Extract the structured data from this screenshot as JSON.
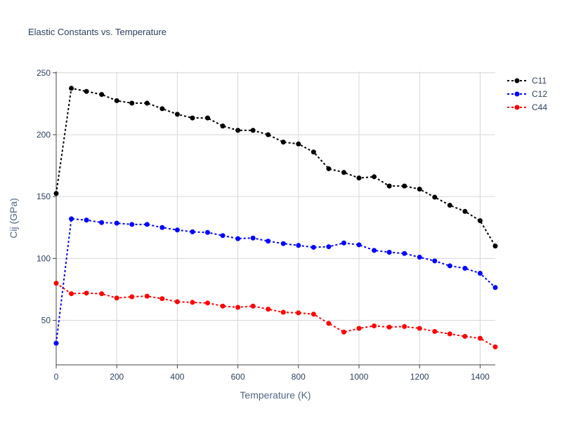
{
  "chart_data": {
    "type": "line",
    "title": "Elastic Constants vs. Temperature",
    "xlabel": "Temperature (K)",
    "ylabel": "Cij (GPa)",
    "xlim": [
      0,
      1450
    ],
    "ylim": [
      14,
      251
    ],
    "grid": true,
    "legend_position": "top-right",
    "x_ticks": [
      0,
      200,
      400,
      600,
      800,
      1000,
      1200,
      1400
    ],
    "y_ticks": [
      50,
      100,
      150,
      200,
      250
    ],
    "x": [
      0,
      50,
      100,
      150,
      200,
      250,
      300,
      350,
      400,
      450,
      500,
      550,
      600,
      650,
      700,
      750,
      800,
      850,
      900,
      950,
      1000,
      1050,
      1100,
      1150,
      1200,
      1250,
      1300,
      1350,
      1400,
      1450
    ],
    "series": [
      {
        "name": "C11",
        "color": "#000000",
        "values": [
          152.5,
          237.5,
          235,
          232.5,
          227.5,
          225.5,
          225.5,
          221,
          216.5,
          213.5,
          213.5,
          207,
          203.5,
          203.5,
          200,
          194,
          192.5,
          186,
          172.5,
          169.5,
          165,
          166,
          158.5,
          158.5,
          156,
          149.5,
          143,
          138,
          130.5,
          110
        ]
      },
      {
        "name": "C12",
        "color": "#0000ff",
        "values": [
          31.5,
          132,
          131,
          129,
          128.5,
          127.5,
          127.5,
          125,
          123,
          121.5,
          121,
          118.5,
          116,
          116.5,
          114,
          112,
          110.5,
          109,
          109.5,
          112.5,
          111,
          106.5,
          105,
          104,
          101,
          98,
          94,
          92,
          88,
          76.5
        ]
      },
      {
        "name": "C44",
        "color": "#ff0000",
        "values": [
          80,
          71.5,
          72,
          71.5,
          68,
          69,
          69.5,
          67.5,
          65,
          64.5,
          64,
          61.5,
          60.5,
          61.5,
          59,
          56.5,
          56,
          55,
          47.5,
          40.5,
          43.5,
          45.5,
          44.5,
          45,
          43.5,
          41,
          39,
          37,
          35.5,
          28.5
        ]
      }
    ]
  }
}
